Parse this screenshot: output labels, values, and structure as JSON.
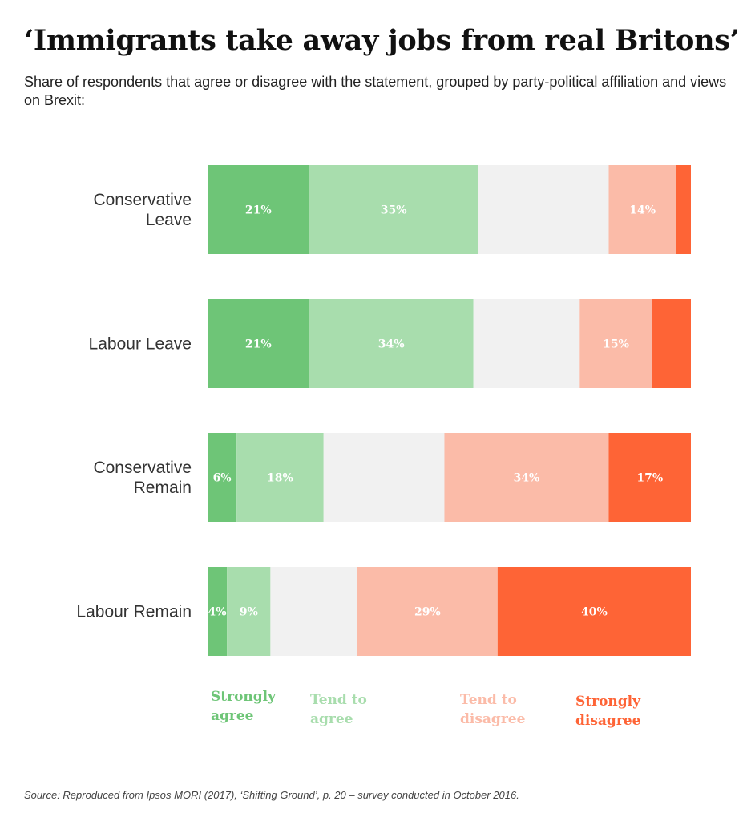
{
  "chart_data": {
    "type": "bar",
    "orientation": "horizontal",
    "stacked": true,
    "normalized": true,
    "title": "‘Immigrants take away jobs from real Britons’",
    "subtitle": "Share of respondents that agree or disagree with the statement, grouped by party-political affiliation and views on Brexit:",
    "categories": [
      [
        "Conservative",
        "Leave"
      ],
      [
        "Labour Leave"
      ],
      [
        "Conservative",
        "Remain"
      ],
      [
        "Labour Remain"
      ]
    ],
    "series": [
      {
        "name": "Strongly agree",
        "legend_lines": [
          "Strongly",
          "agree"
        ],
        "color": "#6ec577",
        "values": [
          21,
          21,
          6,
          4
        ],
        "labels": [
          "21%",
          "21%",
          "6%",
          "4%"
        ]
      },
      {
        "name": "Tend to agree",
        "legend_lines": [
          "Tend to",
          "agree"
        ],
        "color": "#a8ddad",
        "values": [
          35,
          34,
          18,
          9
        ],
        "labels": [
          "35%",
          "34%",
          "18%",
          "9%"
        ]
      },
      {
        "name": "",
        "legend_lines": [],
        "color": "#f1f1f1",
        "values": [
          27,
          22,
          25,
          18
        ],
        "labels": [
          "",
          "",
          "",
          ""
        ]
      },
      {
        "name": "Tend to disagree",
        "legend_lines": [
          "Tend to",
          "disagree"
        ],
        "color": "#fbbba8",
        "values": [
          14,
          15,
          34,
          29
        ],
        "labels": [
          "14%",
          "15%",
          "34%",
          "29%"
        ]
      },
      {
        "name": "Strongly disagree",
        "legend_lines": [
          "Strongly",
          "disagree"
        ],
        "color": "#fe6436",
        "values": [
          3,
          8,
          17,
          40
        ],
        "labels": [
          "",
          "",
          "17%",
          "40%"
        ]
      }
    ],
    "legend_position": "bottom",
    "grid": false,
    "source": "Source: Reproduced from Ipsos MORI (2017), ‘Shifting Ground’, p. 20 – survey conducted in October 2016."
  }
}
